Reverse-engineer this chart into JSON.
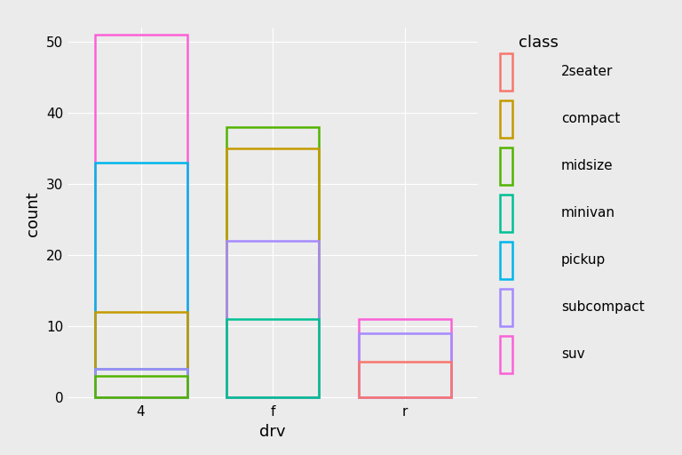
{
  "drv_categories": [
    "4",
    "f",
    "r"
  ],
  "classes": [
    "2seater",
    "compact",
    "midsize",
    "minivan",
    "pickup",
    "subcompact",
    "suv"
  ],
  "colors": {
    "2seater": "#F8766D",
    "compact": "#C49A00",
    "midsize": "#53B400",
    "minivan": "#00C094",
    "pickup": "#00B6EB",
    "subcompact": "#A58AFF",
    "suv": "#FB61D7"
  },
  "counts": {
    "4": {
      "2seater": 0,
      "compact": 12,
      "midsize": 3,
      "minivan": 4,
      "pickup": 33,
      "subcompact": 4,
      "suv": 51
    },
    "f": {
      "2seater": 0,
      "compact": 35,
      "midsize": 38,
      "minivan": 11,
      "pickup": 0,
      "subcompact": 22,
      "suv": 0
    },
    "r": {
      "2seater": 5,
      "compact": 0,
      "midsize": 0,
      "minivan": 0,
      "pickup": 0,
      "subcompact": 9,
      "suv": 11
    }
  },
  "ylabel": "count",
  "xlabel": "drv",
  "legend_title": "class",
  "ylim": [
    -0.5,
    52
  ],
  "yticks": [
    0,
    10,
    20,
    30,
    40,
    50
  ],
  "bar_width": 0.7,
  "plot_bg_color": "#EBEBEB",
  "fig_bg_color": "#EBEBEB",
  "grid_color": "#FFFFFF",
  "legend_bg_color": "#EBEBEB",
  "axis_label_fontsize": 13,
  "tick_fontsize": 11,
  "legend_title_fontsize": 13,
  "legend_fontsize": 11,
  "linewidth": 1.8
}
